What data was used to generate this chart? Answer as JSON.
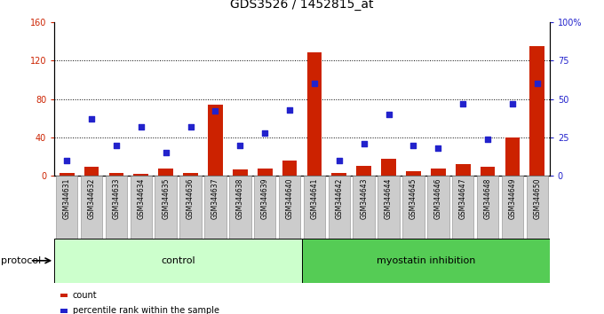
{
  "title": "GDS3526 / 1452815_at",
  "samples": [
    "GSM344631",
    "GSM344632",
    "GSM344633",
    "GSM344634",
    "GSM344635",
    "GSM344636",
    "GSM344637",
    "GSM344638",
    "GSM344639",
    "GSM344640",
    "GSM344641",
    "GSM344642",
    "GSM344643",
    "GSM344644",
    "GSM344645",
    "GSM344646",
    "GSM344647",
    "GSM344648",
    "GSM344649",
    "GSM344650"
  ],
  "count": [
    3,
    9,
    3,
    2,
    8,
    3,
    74,
    7,
    8,
    16,
    128,
    3,
    10,
    18,
    5,
    8,
    12,
    9,
    40,
    135
  ],
  "percentile": [
    10,
    37,
    20,
    32,
    15,
    32,
    42,
    20,
    28,
    43,
    60,
    10,
    21,
    40,
    20,
    18,
    47,
    24,
    47,
    60
  ],
  "control_count": 10,
  "control_label": "control",
  "treatment_label": "myostatin inhibition",
  "protocol_label": "protocol",
  "bar_color": "#cc2200",
  "dot_color": "#2222cc",
  "control_bg": "#ccffcc",
  "treatment_bg": "#55cc55",
  "label_bg": "#cccccc",
  "left_ylim": [
    0,
    160
  ],
  "left_yticks": [
    0,
    40,
    80,
    120,
    160
  ],
  "right_yticks": [
    0,
    25,
    50,
    75,
    100
  ],
  "right_yticklabels": [
    "0",
    "25",
    "50",
    "75",
    "100%"
  ],
  "grid_values": [
    40,
    80,
    120
  ],
  "legend_items": [
    "count",
    "percentile rank within the sample"
  ],
  "title_fontsize": 10,
  "axis_fontsize": 7,
  "label_fontsize": 5.5,
  "protocol_fontsize": 8,
  "legend_fontsize": 7
}
